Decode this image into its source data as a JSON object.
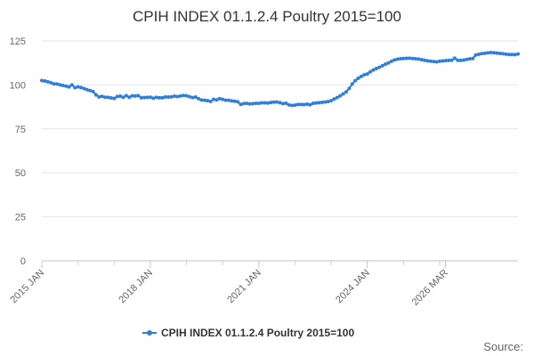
{
  "chart_data": {
    "type": "line",
    "title": "CPIH INDEX 01.1.2.4 Poultry 2015=100",
    "xlabel": "",
    "ylabel": "",
    "ylim": [
      0,
      125
    ],
    "yticks": [
      0,
      25,
      50,
      75,
      100,
      125
    ],
    "xticks": [
      "2015 JAN",
      "2018 JAN",
      "2021 JAN",
      "2024 JAN",
      "2026 MAR"
    ],
    "x_start": "2015 JAN",
    "x_end": "2026 MAR",
    "grid": true,
    "legend_position": "bottom",
    "series": [
      {
        "name": "CPIH INDEX 01.1.2.4 Poultry 2015=100",
        "color": "#2f7ed8",
        "values": [
          102.5,
          102.2,
          101.8,
          101.3,
          100.6,
          100.5,
          100.1,
          99.7,
          99.3,
          98.9,
          100.0,
          98.4,
          98.9,
          98.5,
          97.9,
          97.3,
          96.8,
          96.2,
          94.3,
          93.2,
          93.5,
          93.0,
          92.9,
          92.6,
          92.3,
          93.4,
          93.6,
          92.9,
          93.9,
          93.0,
          93.8,
          93.7,
          93.9,
          92.7,
          92.8,
          92.9,
          93.0,
          92.4,
          92.9,
          92.7,
          92.7,
          93.1,
          93.1,
          93.2,
          93.6,
          93.4,
          93.7,
          94.0,
          93.8,
          93.3,
          92.8,
          93.1,
          92.2,
          91.4,
          91.3,
          91.0,
          90.6,
          91.8,
          91.5,
          92.2,
          91.8,
          91.3,
          91.3,
          90.9,
          90.7,
          90.4,
          88.9,
          89.4,
          89.5,
          89.2,
          89.3,
          89.5,
          89.5,
          89.8,
          89.8,
          89.7,
          90.0,
          90.2,
          90.3,
          89.9,
          89.3,
          89.6,
          88.6,
          88.3,
          88.5,
          88.9,
          88.9,
          88.8,
          89.1,
          88.7,
          89.5,
          89.7,
          89.9,
          90.1,
          90.3,
          90.5,
          91.0,
          92.0,
          92.8,
          93.8,
          94.9,
          96.0,
          98.0,
          100.5,
          102.4,
          103.8,
          104.8,
          105.8,
          106.2,
          107.5,
          108.5,
          109.3,
          110.0,
          110.9,
          111.8,
          112.5,
          113.4,
          114.2,
          114.6,
          114.9,
          115.0,
          115.1,
          115.2,
          115.0,
          114.9,
          114.7,
          114.4,
          114.0,
          113.7,
          113.5,
          113.3,
          113.1,
          113.5,
          113.6,
          113.8,
          113.9,
          114.0,
          115.2,
          114.0,
          113.9,
          114.1,
          114.5,
          114.8,
          115.0,
          117.0,
          117.4,
          117.8,
          118.0,
          118.2,
          118.4,
          118.3,
          118.1,
          117.9,
          117.7,
          117.5,
          117.3,
          117.3,
          117.2,
          117.6
        ]
      }
    ]
  },
  "source_label": "Source:"
}
